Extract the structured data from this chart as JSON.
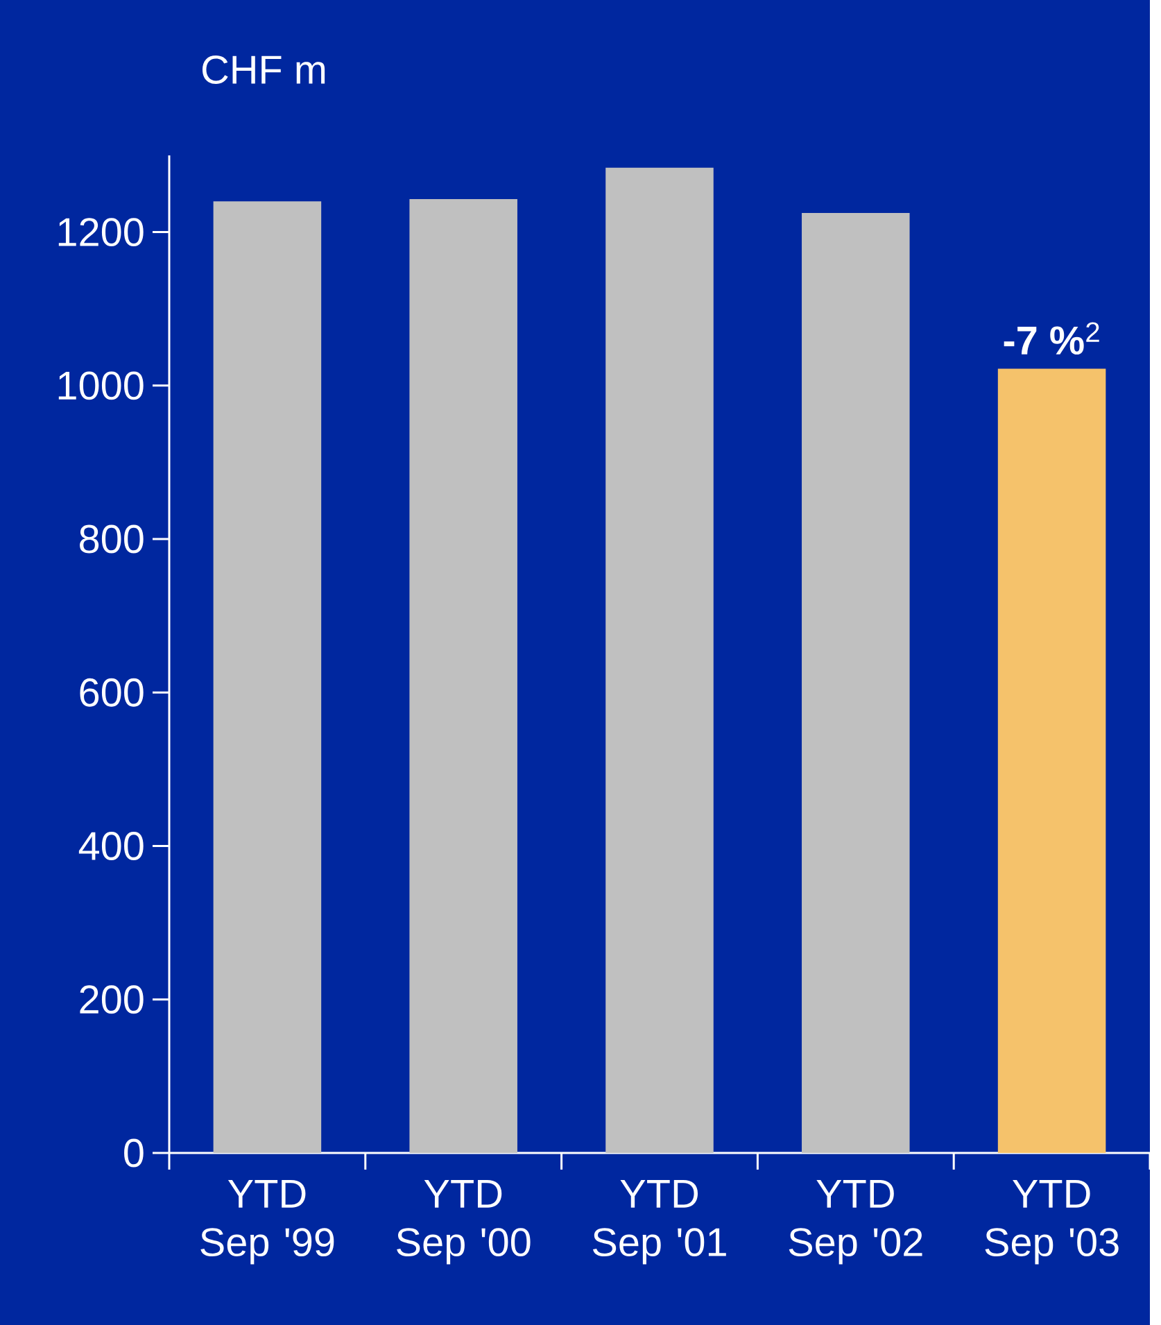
{
  "chart_data": {
    "type": "bar",
    "ylabel": "CHF m",
    "categories": [
      "YTD Sep '99",
      "YTD Sep '00",
      "YTD Sep '01",
      "YTD Sep '02",
      "YTD Sep '03"
    ],
    "values": [
      1240,
      1243,
      1284,
      1225,
      1022
    ],
    "colors": [
      "#c0c0c0",
      "#c0c0c0",
      "#c0c0c0",
      "#c0c0c0",
      "#f5c26b"
    ],
    "ylim": [
      0,
      1300
    ],
    "yticks": [
      0,
      200,
      400,
      600,
      800,
      1000,
      1200
    ],
    "annotations": [
      {
        "text": "**-7 %**$^{2}$",
        "x": "YTD Sep '03",
        "y": 1022
      }
    ]
  }
}
